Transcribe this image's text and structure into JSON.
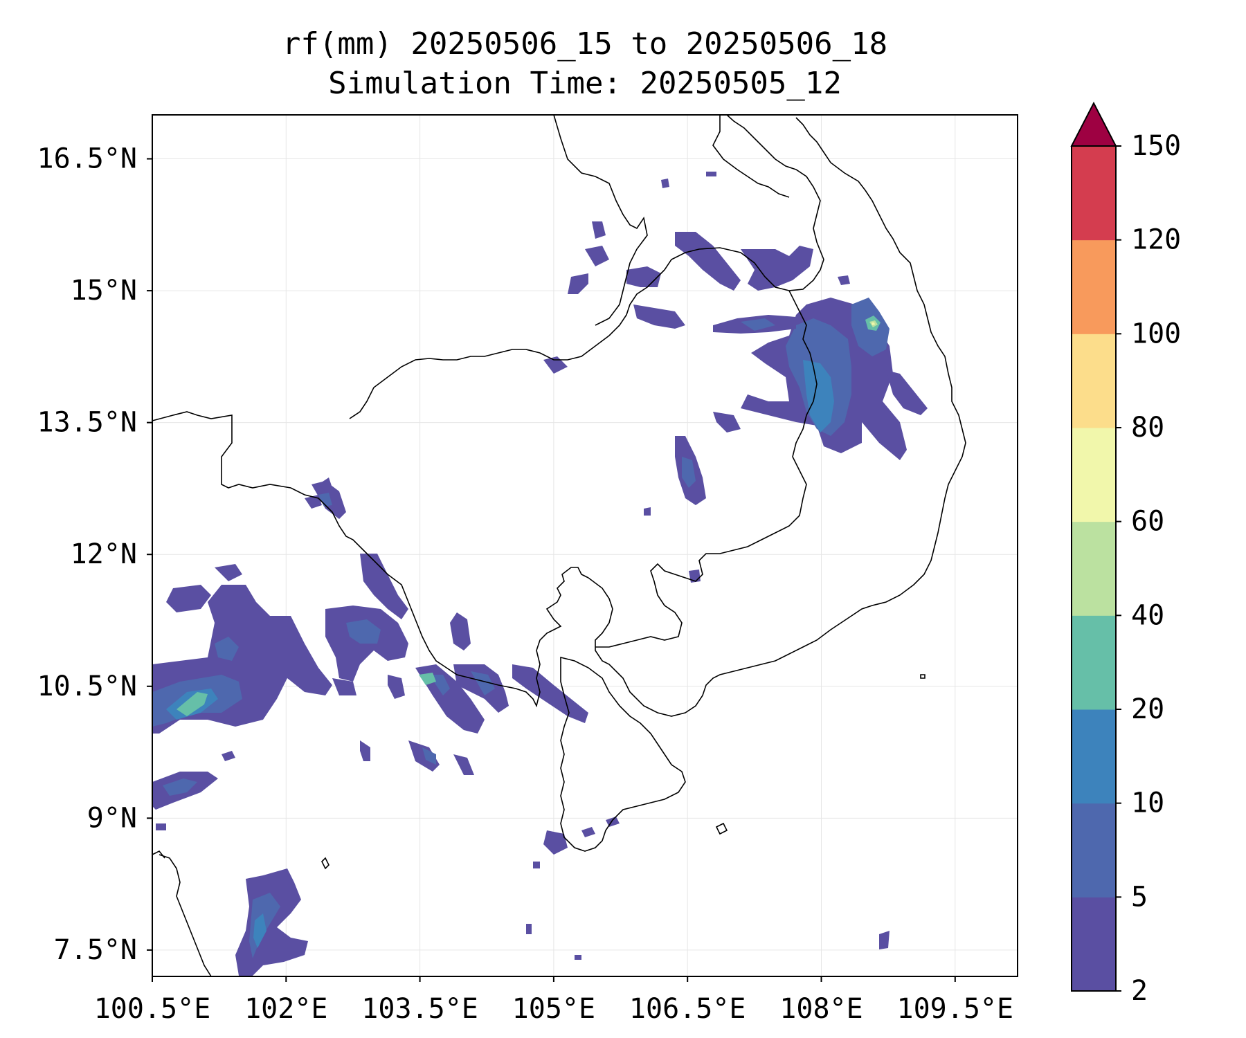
{
  "title": {
    "line1": "rf(mm) 20250506_15 to 20250506_18",
    "line2": "Simulation Time: 20250505_12"
  },
  "map": {
    "lon_range": [
      100.5,
      110.2
    ],
    "lat_range": [
      7.2,
      17.0
    ],
    "lon_ticks": [
      "100.5°E",
      "102°E",
      "103.5°E",
      "105°E",
      "106.5°E",
      "108°E",
      "109.5°E"
    ],
    "lat_ticks": [
      "16.5°N",
      "15°N",
      "13.5°N",
      "12°N",
      "10.5°N",
      "9°N",
      "7.5°N"
    ],
    "gridlines": true,
    "coastline_color": "#000000",
    "background": "#ffffff"
  },
  "colorbar": {
    "levels": [
      "2",
      "5",
      "10",
      "20",
      "40",
      "60",
      "80",
      "100",
      "120",
      "150"
    ],
    "colors": [
      "#5a4fa2",
      "#4e68ae",
      "#3d83bc",
      "#66bfa8",
      "#bbe1a0",
      "#f1f7ab",
      "#fcdd8b",
      "#f89a5c",
      "#d43d4f"
    ],
    "extend_color": "#9e0142",
    "extend": "max",
    "position": "right"
  },
  "precip_legend_colors": {
    "c2": "#5a4fa2",
    "c5": "#4e68ae",
    "c10": "#3d83bc",
    "c20": "#66bfa8",
    "c40": "#bbe1a0",
    "c60": "#f1f7ab"
  }
}
